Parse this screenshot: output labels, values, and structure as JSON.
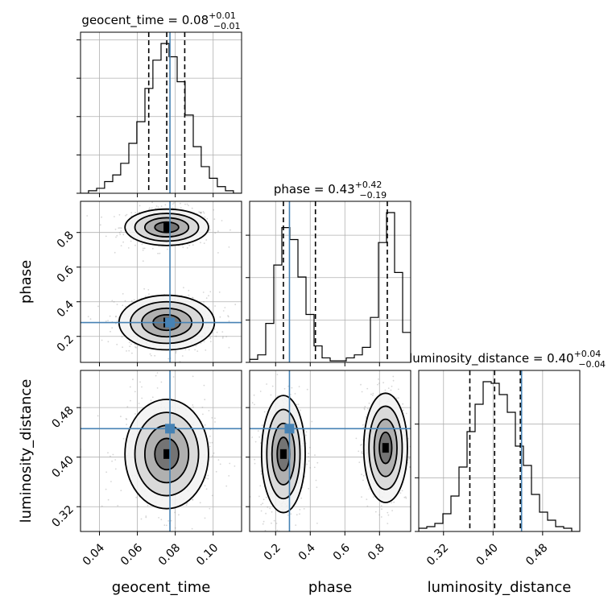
{
  "chart_data": {
    "type": "corner",
    "parameters": [
      {
        "name": "geocent_time",
        "label": "geocent_time",
        "range": [
          0.03,
          0.115
        ],
        "ticks": [
          0.04,
          0.06,
          0.08,
          0.1
        ],
        "tick_labels": [
          "0.04",
          "0.06",
          "0.08",
          "0.10"
        ],
        "title": {
          "prefix": "geocent_time = ",
          "value": "0.08",
          "plus": "+0.01",
          "minus": "−0.01"
        },
        "quantiles": [
          0.066,
          0.0755,
          0.085
        ],
        "truth": 0.0772,
        "hist_bins": [
          0.03,
          0.0342,
          0.0385,
          0.0427,
          0.047,
          0.0512,
          0.0555,
          0.0597,
          0.064,
          0.0682,
          0.0725,
          0.0767,
          0.081,
          0.0852,
          0.0895,
          0.0937,
          0.098,
          0.1022,
          0.1065,
          0.1107,
          0.115
        ],
        "hist_counts": [
          0,
          0.015,
          0.03,
          0.07,
          0.11,
          0.18,
          0.3,
          0.43,
          0.63,
          0.8,
          0.9,
          0.82,
          0.67,
          0.47,
          0.28,
          0.16,
          0.09,
          0.04,
          0.015,
          0
        ]
      },
      {
        "name": "phase",
        "label": "phase",
        "range": [
          0.05,
          0.98
        ],
        "ticks": [
          0.2,
          0.4,
          0.6,
          0.8
        ],
        "tick_labels": [
          "0.2",
          "0.4",
          "0.6",
          "0.8"
        ],
        "title": {
          "prefix": "phase = ",
          "value": "0.43",
          "plus": "+0.42",
          "minus": "−0.19"
        },
        "quantiles": [
          0.245,
          0.43,
          0.845
        ],
        "truth": 0.28,
        "hist_bins": [
          0.05,
          0.0965,
          0.143,
          0.1895,
          0.236,
          0.2825,
          0.329,
          0.3755,
          0.422,
          0.4685,
          0.515,
          0.5615,
          0.608,
          0.6545,
          0.701,
          0.7475,
          0.794,
          0.8405,
          0.887,
          0.9335,
          0.98
        ],
        "hist_counts": [
          0.02,
          0.05,
          0.26,
          0.65,
          0.9,
          0.82,
          0.57,
          0.32,
          0.11,
          0.03,
          0.01,
          0.01,
          0.03,
          0.05,
          0.1,
          0.3,
          0.8,
          1.0,
          0.6,
          0.2
        ]
      },
      {
        "name": "luminosity_distance",
        "label": "luminosity_distance",
        "range": [
          0.28,
          0.54
        ],
        "ticks": [
          0.32,
          0.4,
          0.48
        ],
        "tick_labels": [
          "0.32",
          "0.40",
          "0.48"
        ],
        "title": {
          "prefix": "luminosity_distance = ",
          "value": "0.40",
          "plus": "+0.04",
          "minus": "−0.04"
        },
        "quantiles": [
          0.3625,
          0.4025,
          0.444
        ],
        "truth": 0.446,
        "hist_bins": [
          0.28,
          0.293,
          0.306,
          0.319,
          0.332,
          0.345,
          0.358,
          0.371,
          0.384,
          0.397,
          0.41,
          0.423,
          0.436,
          0.449,
          0.462,
          0.475,
          0.488,
          0.501,
          0.514,
          0.527,
          0.54
        ],
        "hist_counts": [
          0.02,
          0.03,
          0.05,
          0.11,
          0.22,
          0.4,
          0.62,
          0.79,
          0.93,
          0.92,
          0.85,
          0.74,
          0.53,
          0.41,
          0.23,
          0.12,
          0.07,
          0.03,
          0.02,
          0
        ]
      }
    ],
    "truth_color": "#4682b4",
    "contour_color": "#000000",
    "grid": true,
    "joint_modes": [
      {
        "x": "geocent_time",
        "y": "phase",
        "modes": [
          {
            "cx": 0.0755,
            "cy": 0.83,
            "sx": 0.0105,
            "sy": 0.05
          },
          {
            "cx": 0.0755,
            "cy": 0.28,
            "sx": 0.012,
            "sy": 0.075
          }
        ]
      },
      {
        "x": "geocent_time",
        "y": "luminosity_distance",
        "modes": [
          {
            "cx": 0.0755,
            "cy": 0.405,
            "sx": 0.0105,
            "sy": 0.042
          }
        ]
      },
      {
        "x": "phase",
        "y": "luminosity_distance",
        "modes": [
          {
            "cx": 0.245,
            "cy": 0.405,
            "sx": 0.06,
            "sy": 0.045
          },
          {
            "cx": 0.835,
            "cy": 0.415,
            "sx": 0.06,
            "sy": 0.042
          }
        ]
      }
    ]
  }
}
